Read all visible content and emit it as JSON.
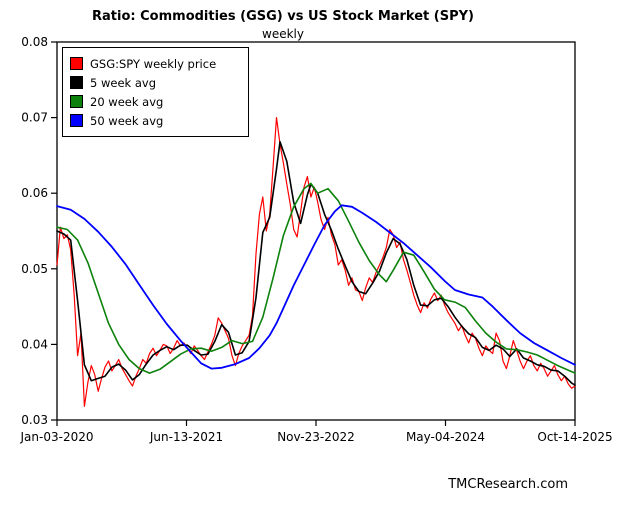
{
  "footer": {
    "text": "TMCResearch.com"
  },
  "chart_data": {
    "type": "line",
    "title": "Ratio: Commodities (GSG) vs US Stock Market (SPY)",
    "subtitle": "weekly",
    "grid": false,
    "legend_position": "top-left",
    "x_axis": {
      "unit": "weeks since first observation",
      "range": [
        0,
        302
      ],
      "ticks": [
        {
          "week": 0,
          "label": "Jan-03-2020"
        },
        {
          "week": 75.5,
          "label": "Jun-13-2021"
        },
        {
          "week": 151,
          "label": "Nov-23-2022"
        },
        {
          "week": 226.5,
          "label": "May-04-2024"
        },
        {
          "week": 302,
          "label": "Oct-14-2025"
        }
      ]
    },
    "y_axis": {
      "range": [
        0.03,
        0.08
      ],
      "ticks": [
        0.03,
        0.04,
        0.05,
        0.06,
        0.07,
        0.08
      ]
    },
    "series": [
      {
        "name": "GSG:SPY weekly price",
        "color": "#ff0000",
        "line_width": 1.2,
        "x_start": 0,
        "x_step": 2,
        "values": [
          0.0505,
          0.0555,
          0.054,
          0.0545,
          0.0525,
          0.0465,
          0.0385,
          0.0415,
          0.0318,
          0.035,
          0.0372,
          0.036,
          0.0338,
          0.0355,
          0.037,
          0.0378,
          0.0365,
          0.0372,
          0.038,
          0.0368,
          0.036,
          0.0352,
          0.0345,
          0.0358,
          0.0368,
          0.038,
          0.0375,
          0.0388,
          0.0395,
          0.0385,
          0.0392,
          0.04,
          0.0398,
          0.0388,
          0.0395,
          0.0405,
          0.0398,
          0.0402,
          0.0395,
          0.0388,
          0.0398,
          0.0392,
          0.0385,
          0.038,
          0.039,
          0.04,
          0.0412,
          0.0435,
          0.0428,
          0.0418,
          0.0408,
          0.0385,
          0.0372,
          0.0388,
          0.0398,
          0.0405,
          0.0412,
          0.0438,
          0.052,
          0.0572,
          0.0595,
          0.055,
          0.0572,
          0.0635,
          0.07,
          0.0665,
          0.064,
          0.0612,
          0.0585,
          0.0552,
          0.0542,
          0.0575,
          0.0608,
          0.0622,
          0.0595,
          0.0608,
          0.0588,
          0.0565,
          0.0552,
          0.0568,
          0.0545,
          0.0532,
          0.0505,
          0.0512,
          0.0498,
          0.0478,
          0.0488,
          0.0472,
          0.047,
          0.0458,
          0.0475,
          0.0488,
          0.0482,
          0.0495,
          0.0505,
          0.0515,
          0.0528,
          0.0552,
          0.0545,
          0.0528,
          0.0535,
          0.0512,
          0.0498,
          0.0482,
          0.0465,
          0.0452,
          0.0442,
          0.0455,
          0.0448,
          0.046,
          0.0468,
          0.0458,
          0.0465,
          0.0452,
          0.0442,
          0.0435,
          0.0428,
          0.0418,
          0.0425,
          0.0412,
          0.0402,
          0.0415,
          0.0408,
          0.0395,
          0.0385,
          0.0398,
          0.0392,
          0.0388,
          0.0415,
          0.0405,
          0.0378,
          0.0368,
          0.0385,
          0.0405,
          0.0392,
          0.0378,
          0.0368,
          0.0378,
          0.0385,
          0.0372,
          0.0365,
          0.0375,
          0.0368,
          0.0358,
          0.0365,
          0.0372,
          0.036,
          0.0352,
          0.0358,
          0.0348,
          0.0342,
          0.0345
        ]
      },
      {
        "name": "5 week avg",
        "color": "#000000",
        "line_width": 1.6,
        "points": [
          [
            0,
            0.055
          ],
          [
            4,
            0.0546
          ],
          [
            8,
            0.0538
          ],
          [
            12,
            0.0458
          ],
          [
            16,
            0.0373
          ],
          [
            20,
            0.0352
          ],
          [
            24,
            0.0355
          ],
          [
            28,
            0.0358
          ],
          [
            32,
            0.037
          ],
          [
            36,
            0.0374
          ],
          [
            40,
            0.0366
          ],
          [
            44,
            0.0353
          ],
          [
            48,
            0.036
          ],
          [
            52,
            0.0374
          ],
          [
            56,
            0.0386
          ],
          [
            60,
            0.0392
          ],
          [
            64,
            0.0397
          ],
          [
            68,
            0.0393
          ],
          [
            72,
            0.0399
          ],
          [
            76,
            0.0399
          ],
          [
            80,
            0.0392
          ],
          [
            84,
            0.0386
          ],
          [
            88,
            0.0387
          ],
          [
            92,
            0.0404
          ],
          [
            96,
            0.0426
          ],
          [
            100,
            0.0416
          ],
          [
            104,
            0.0386
          ],
          [
            108,
            0.0389
          ],
          [
            112,
            0.0404
          ],
          [
            116,
            0.0462
          ],
          [
            120,
            0.0548
          ],
          [
            124,
            0.0568
          ],
          [
            128,
            0.0632
          ],
          [
            130,
            0.0668
          ],
          [
            134,
            0.0642
          ],
          [
            138,
            0.0588
          ],
          [
            142,
            0.056
          ],
          [
            146,
            0.0598
          ],
          [
            148,
            0.0612
          ],
          [
            152,
            0.06
          ],
          [
            156,
            0.0572
          ],
          [
            160,
            0.0551
          ],
          [
            164,
            0.0526
          ],
          [
            168,
            0.0504
          ],
          [
            172,
            0.0483
          ],
          [
            176,
            0.047
          ],
          [
            180,
            0.0467
          ],
          [
            184,
            0.0481
          ],
          [
            188,
            0.0497
          ],
          [
            192,
            0.0521
          ],
          [
            196,
            0.054
          ],
          [
            200,
            0.0533
          ],
          [
            204,
            0.0512
          ],
          [
            208,
            0.0478
          ],
          [
            212,
            0.0452
          ],
          [
            216,
            0.0451
          ],
          [
            220,
            0.0459
          ],
          [
            224,
            0.0461
          ],
          [
            228,
            0.045
          ],
          [
            232,
            0.0436
          ],
          [
            236,
            0.0424
          ],
          [
            240,
            0.0414
          ],
          [
            244,
            0.0409
          ],
          [
            248,
            0.0396
          ],
          [
            252,
            0.0392
          ],
          [
            256,
            0.0399
          ],
          [
            260,
            0.0394
          ],
          [
            264,
            0.0384
          ],
          [
            268,
            0.0394
          ],
          [
            272,
            0.0382
          ],
          [
            276,
            0.0378
          ],
          [
            280,
            0.0373
          ],
          [
            284,
            0.0371
          ],
          [
            288,
            0.0366
          ],
          [
            292,
            0.0365
          ],
          [
            296,
            0.0358
          ],
          [
            300,
            0.0349
          ],
          [
            302,
            0.0346
          ]
        ]
      },
      {
        "name": "20 week avg",
        "color": "#0c820c",
        "line_width": 1.6,
        "points": [
          [
            0,
            0.0555
          ],
          [
            6,
            0.0552
          ],
          [
            12,
            0.0538
          ],
          [
            18,
            0.0508
          ],
          [
            24,
            0.0468
          ],
          [
            30,
            0.0428
          ],
          [
            36,
            0.04
          ],
          [
            42,
            0.038
          ],
          [
            48,
            0.0368
          ],
          [
            54,
            0.0362
          ],
          [
            60,
            0.0367
          ],
          [
            66,
            0.0377
          ],
          [
            72,
            0.0387
          ],
          [
            78,
            0.0394
          ],
          [
            84,
            0.0395
          ],
          [
            90,
            0.0391
          ],
          [
            96,
            0.0396
          ],
          [
            102,
            0.0405
          ],
          [
            108,
            0.0401
          ],
          [
            114,
            0.0404
          ],
          [
            120,
            0.0436
          ],
          [
            126,
            0.0488
          ],
          [
            132,
            0.0544
          ],
          [
            138,
            0.0582
          ],
          [
            144,
            0.0606
          ],
          [
            148,
            0.0613
          ],
          [
            152,
            0.06
          ],
          [
            158,
            0.0606
          ],
          [
            164,
            0.059
          ],
          [
            170,
            0.0563
          ],
          [
            176,
            0.0535
          ],
          [
            182,
            0.0511
          ],
          [
            188,
            0.0492
          ],
          [
            192,
            0.0483
          ],
          [
            196,
            0.0498
          ],
          [
            202,
            0.0522
          ],
          [
            208,
            0.0518
          ],
          [
            214,
            0.0496
          ],
          [
            220,
            0.0473
          ],
          [
            226,
            0.0459
          ],
          [
            232,
            0.0456
          ],
          [
            238,
            0.0449
          ],
          [
            244,
            0.0431
          ],
          [
            250,
            0.0415
          ],
          [
            256,
            0.0403
          ],
          [
            262,
            0.0394
          ],
          [
            268,
            0.0393
          ],
          [
            274,
            0.039
          ],
          [
            280,
            0.0386
          ],
          [
            286,
            0.0379
          ],
          [
            292,
            0.0372
          ],
          [
            298,
            0.0366
          ],
          [
            302,
            0.0362
          ]
        ]
      },
      {
        "name": "50 week avg",
        "color": "#0000ff",
        "line_width": 1.8,
        "points": [
          [
            0,
            0.0583
          ],
          [
            8,
            0.0578
          ],
          [
            16,
            0.0566
          ],
          [
            24,
            0.0549
          ],
          [
            32,
            0.0529
          ],
          [
            40,
            0.0506
          ],
          [
            48,
            0.0479
          ],
          [
            56,
            0.0452
          ],
          [
            64,
            0.0427
          ],
          [
            72,
            0.0405
          ],
          [
            78,
            0.039
          ],
          [
            84,
            0.0375
          ],
          [
            90,
            0.0368
          ],
          [
            96,
            0.0369
          ],
          [
            104,
            0.0374
          ],
          [
            112,
            0.0382
          ],
          [
            118,
            0.0395
          ],
          [
            124,
            0.0412
          ],
          [
            128,
            0.0428
          ],
          [
            132,
            0.0448
          ],
          [
            138,
            0.0478
          ],
          [
            144,
            0.0505
          ],
          [
            150,
            0.0532
          ],
          [
            156,
            0.0558
          ],
          [
            162,
            0.0576
          ],
          [
            166,
            0.0584
          ],
          [
            172,
            0.0582
          ],
          [
            178,
            0.0574
          ],
          [
            186,
            0.0562
          ],
          [
            194,
            0.0548
          ],
          [
            202,
            0.0534
          ],
          [
            210,
            0.0518
          ],
          [
            218,
            0.0502
          ],
          [
            226,
            0.0484
          ],
          [
            232,
            0.0472
          ],
          [
            240,
            0.0466
          ],
          [
            248,
            0.0462
          ],
          [
            254,
            0.045
          ],
          [
            262,
            0.0432
          ],
          [
            270,
            0.0415
          ],
          [
            278,
            0.0402
          ],
          [
            286,
            0.0392
          ],
          [
            294,
            0.0382
          ],
          [
            302,
            0.0373
          ]
        ]
      }
    ]
  }
}
